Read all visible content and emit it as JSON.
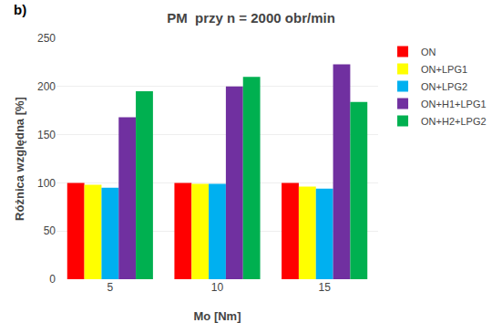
{
  "chart_data": {
    "type": "bar",
    "title": "PM  przy n = 2000 obr/min",
    "xlabel": "Mo [Nm]",
    "ylabel": "Różnica względna [%]",
    "annotations": [
      "b)"
    ],
    "categories": [
      5,
      10,
      15
    ],
    "series": [
      {
        "name": "ON",
        "color": "#ff0000",
        "values": [
          100,
          100,
          100
        ]
      },
      {
        "name": "ON+LPG1",
        "color": "#ffff00",
        "values": [
          98,
          99,
          96
        ]
      },
      {
        "name": "ON+LPG2",
        "color": "#00b0f0",
        "values": [
          95,
          99,
          94
        ]
      },
      {
        "name": "ON+H1+LPG1",
        "color": "#7030a0",
        "values": [
          168,
          200,
          223
        ]
      },
      {
        "name": "ON+H2+LPG2",
        "color": "#00b050",
        "values": [
          195,
          210,
          184
        ]
      }
    ],
    "ylim": [
      0,
      250
    ],
    "yticks": [
      0,
      50,
      100,
      150,
      200,
      250
    ],
    "grid": true,
    "legend": "upper right"
  }
}
